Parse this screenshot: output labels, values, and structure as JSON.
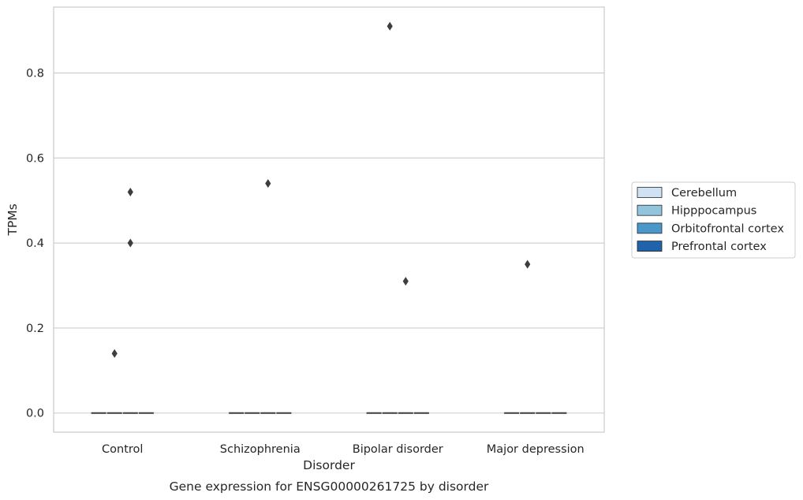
{
  "chart_data": {
    "type": "box",
    "title": "",
    "caption": "Gene expression for ENSG00000261725 by disorder",
    "xlabel": "Disorder",
    "ylabel": "TPMs",
    "categories": [
      "Control",
      "Schizophrenia",
      "Bipolar disorder",
      "Major depression"
    ],
    "yticks": [
      0.0,
      0.2,
      0.4,
      0.6,
      0.8
    ],
    "ytick_labels": [
      "0.0",
      "0.2",
      "0.4",
      "0.6",
      "0.8"
    ],
    "ylim": [
      -0.045,
      0.955
    ],
    "grid": true,
    "legend_position": "right",
    "series": [
      {
        "name": "Cerebellum",
        "color": "#cfe1f2",
        "medians": [
          0,
          0,
          0,
          0
        ],
        "outliers": [
          [],
          [],
          [],
          []
        ]
      },
      {
        "name": "Hipppocampus",
        "color": "#93c4de",
        "medians": [
          0,
          0,
          0,
          0
        ],
        "outliers": [
          [
            0.14
          ],
          [],
          [
            0.91
          ],
          [
            0.35
          ]
        ]
      },
      {
        "name": "Orbitofrontal cortex",
        "color": "#4a98c9",
        "medians": [
          0,
          0,
          0,
          0
        ],
        "outliers": [
          [
            0.52,
            0.4
          ],
          [
            0.54
          ],
          [
            0.31
          ],
          []
        ]
      },
      {
        "name": "Prefrontal cortex",
        "color": "#2163aa",
        "medians": [
          0,
          0,
          0,
          0
        ],
        "outliers": [
          [],
          [],
          [],
          []
        ]
      }
    ]
  }
}
